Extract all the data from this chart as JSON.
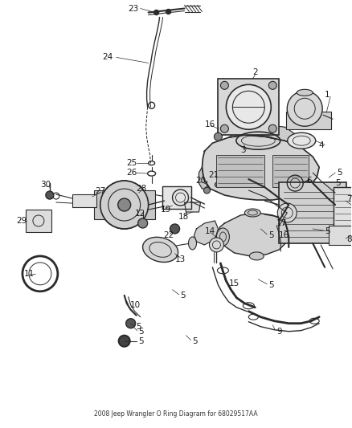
{
  "title": "2008 Jeep Wrangler O Ring Diagram for 68029517AA",
  "background_color": "#ffffff",
  "line_color": "#2a2a2a",
  "label_color": "#1a1a1a",
  "figsize": [
    4.38,
    5.33
  ],
  "dpi": 100,
  "label_fontsize": 7.5
}
